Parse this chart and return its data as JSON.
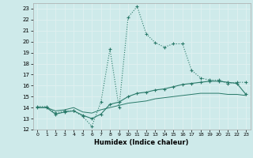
{
  "xlabel": "Humidex (Indice chaleur)",
  "xlim": [
    -0.5,
    23.5
  ],
  "ylim": [
    12,
    23.5
  ],
  "yticks": [
    12,
    13,
    14,
    15,
    16,
    17,
    18,
    19,
    20,
    21,
    22,
    23
  ],
  "xticks": [
    0,
    1,
    2,
    3,
    4,
    5,
    6,
    7,
    8,
    9,
    10,
    11,
    12,
    13,
    14,
    15,
    16,
    17,
    18,
    19,
    20,
    21,
    22,
    23
  ],
  "bg_color": "#ceeaea",
  "line_color": "#2a7a6a",
  "grid_color": "#e0f0f0",
  "line1_x": [
    0,
    1,
    2,
    3,
    4,
    5,
    6,
    7,
    8,
    9,
    10,
    11,
    12,
    13,
    14,
    15,
    16,
    17,
    18,
    19,
    20,
    21,
    22,
    23
  ],
  "line1_y": [
    14.1,
    14.1,
    13.5,
    13.7,
    13.7,
    13.2,
    12.3,
    14.5,
    19.3,
    14.0,
    22.2,
    23.2,
    20.7,
    19.9,
    19.5,
    19.8,
    19.8,
    17.4,
    16.7,
    16.5,
    16.5,
    16.2,
    16.3,
    16.3
  ],
  "line2_x": [
    0,
    1,
    2,
    3,
    4,
    5,
    6,
    7,
    8,
    9,
    10,
    11,
    12,
    13,
    14,
    15,
    16,
    17,
    18,
    19,
    20,
    21,
    22,
    23
  ],
  "line2_y": [
    14.0,
    14.0,
    13.4,
    13.6,
    13.7,
    13.3,
    13.0,
    13.4,
    14.3,
    14.5,
    15.0,
    15.3,
    15.4,
    15.6,
    15.7,
    15.9,
    16.1,
    16.2,
    16.3,
    16.4,
    16.4,
    16.3,
    16.2,
    15.2
  ],
  "line3_x": [
    0,
    1,
    2,
    3,
    4,
    5,
    6,
    7,
    8,
    9,
    10,
    11,
    12,
    13,
    14,
    15,
    16,
    17,
    18,
    19,
    20,
    21,
    22,
    23
  ],
  "line3_y": [
    14.0,
    14.0,
    13.7,
    13.8,
    14.0,
    13.6,
    13.5,
    13.8,
    14.0,
    14.2,
    14.4,
    14.5,
    14.6,
    14.8,
    14.9,
    15.0,
    15.1,
    15.2,
    15.3,
    15.3,
    15.3,
    15.2,
    15.2,
    15.1
  ]
}
